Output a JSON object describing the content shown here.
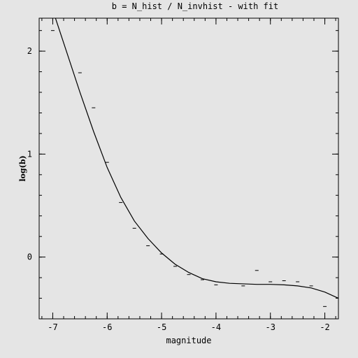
{
  "chart_data": {
    "type": "scatter",
    "title": "b = N_hist / N_invhist - with fit",
    "xlabel": "magnitude",
    "ylabel": "log(b)",
    "xlim": [
      -7.25,
      -1.75
    ],
    "ylim": [
      -0.6,
      2.32
    ],
    "x_ticks": [
      -7,
      -6,
      -5,
      -4,
      -3,
      -2
    ],
    "x_tick_labels": [
      "-7",
      "-6",
      "-5",
      "-4",
      "-3",
      "-2"
    ],
    "x_minor_step": 0.2,
    "y_ticks": [
      0,
      1,
      2
    ],
    "y_tick_labels": [
      "0",
      "1",
      "2"
    ],
    "y_minor_step": 0.2,
    "grid": false,
    "marker_color": "#000000",
    "line_color": "#000000",
    "series": [
      {
        "kind": "points",
        "x": [
          -7.0,
          -6.5,
          -6.25,
          -6.0,
          -5.75,
          -5.5,
          -5.25,
          -5.0,
          -4.75,
          -4.5,
          -4.25,
          -4.0,
          -3.5,
          -3.25,
          -3.0,
          -2.75,
          -2.5,
          -2.25,
          -2.0
        ],
        "y": [
          2.2,
          1.79,
          1.45,
          0.92,
          0.53,
          0.28,
          0.11,
          0.03,
          -0.09,
          -0.17,
          -0.22,
          -0.27,
          -0.28,
          -0.13,
          -0.24,
          -0.23,
          -0.24,
          -0.28,
          -0.48
        ]
      },
      {
        "kind": "fit",
        "x": [
          -6.95,
          -6.75,
          -6.5,
          -6.25,
          -6.0,
          -5.75,
          -5.5,
          -5.25,
          -5.0,
          -4.75,
          -4.5,
          -4.25,
          -4.0,
          -3.75,
          -3.5,
          -3.25,
          -3.0,
          -2.75,
          -2.5,
          -2.25,
          -2.0,
          -1.75
        ],
        "y": [
          2.32,
          2.0,
          1.6,
          1.22,
          0.87,
          0.58,
          0.35,
          0.18,
          0.04,
          -0.07,
          -0.15,
          -0.21,
          -0.24,
          -0.255,
          -0.26,
          -0.265,
          -0.265,
          -0.27,
          -0.28,
          -0.3,
          -0.34,
          -0.4
        ]
      }
    ]
  }
}
